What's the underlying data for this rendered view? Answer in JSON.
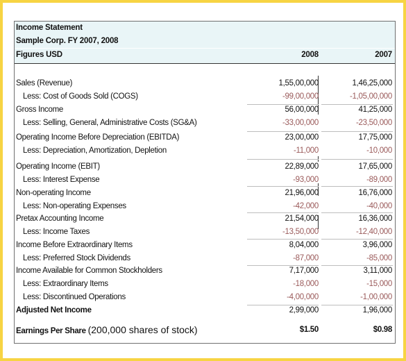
{
  "title": "Income Statement",
  "company": "Sample Corp.  FY 2007, 2008",
  "figures_label": "Figures USD",
  "year1": "2008",
  "year2": "2007",
  "rows": [
    {
      "label": "Sales (Revenue)",
      "v1": "1,55,00,000",
      "v2": "1,46,25,000"
    },
    {
      "label": "Less: Cost of Goods Sold (COGS)",
      "v1": "-99,00,000",
      "v2": "-1,05,00,000"
    },
    {
      "label": "Gross Income",
      "v1": "56,00,000",
      "v2": "41,25,000"
    },
    {
      "label": "Less: Selling, General, Administrative Costs (SG&A)",
      "v1": "-33,00,000",
      "v2": "-23,50,000"
    },
    {
      "label": "Operating Income Before Depreciation (EBITDA)",
      "v1": "23,00,000",
      "v2": "17,75,000"
    },
    {
      "label": "Less: Depreciation, Amortization, Depletion",
      "v1": "-11,000",
      "v2": "-10,000"
    },
    {
      "label": "Operating Income (EBIT)",
      "v1": "22,89,000",
      "v2": "17,65,000"
    },
    {
      "label": "Less: Interest Expense",
      "v1": "-93,000",
      "v2": "-89,000"
    },
    {
      "label": "Non-operating Income",
      "v1": "21,96,000",
      "v2": "16,76,000"
    },
    {
      "label": "Less: Non-operating Expenses",
      "v1": "-42,000",
      "v2": "-40,000"
    },
    {
      "label": "Pretax Accounting Income",
      "v1": "21,54,000",
      "v2": "16,36,000"
    },
    {
      "label": "Less: Income Taxes",
      "v1": "-13,50,000",
      "v2": "-12,40,000"
    },
    {
      "label": "Income Before Extraordinary Items",
      "v1": "8,04,000",
      "v2": "3,96,000"
    },
    {
      "label": "Less: Preferred Stock Dividends",
      "v1": "-87,000",
      "v2": "-85,000"
    },
    {
      "label": "Income Available for Common Stockholders",
      "v1": "7,17,000",
      "v2": "3,11,000"
    },
    {
      "label": "Less: Extraordinary Items",
      "v1": "-18,000",
      "v2": "-15,000"
    },
    {
      "label": "Less: Discontinued Operations",
      "v1": "-4,00,000",
      "v2": "-1,00,000"
    },
    {
      "label": "Adjusted Net Income",
      "v1": "2,99,000",
      "v2": "1,96,000"
    }
  ],
  "eps": {
    "label": "Earnings Per Share",
    "note": "(200,000 shares of stock)",
    "v1": "$1.50",
    "v2": "$0.98"
  },
  "colors": {
    "background": "#f7d443",
    "header_fill": "#e9f5f7",
    "negative": "#9a5a5a"
  }
}
